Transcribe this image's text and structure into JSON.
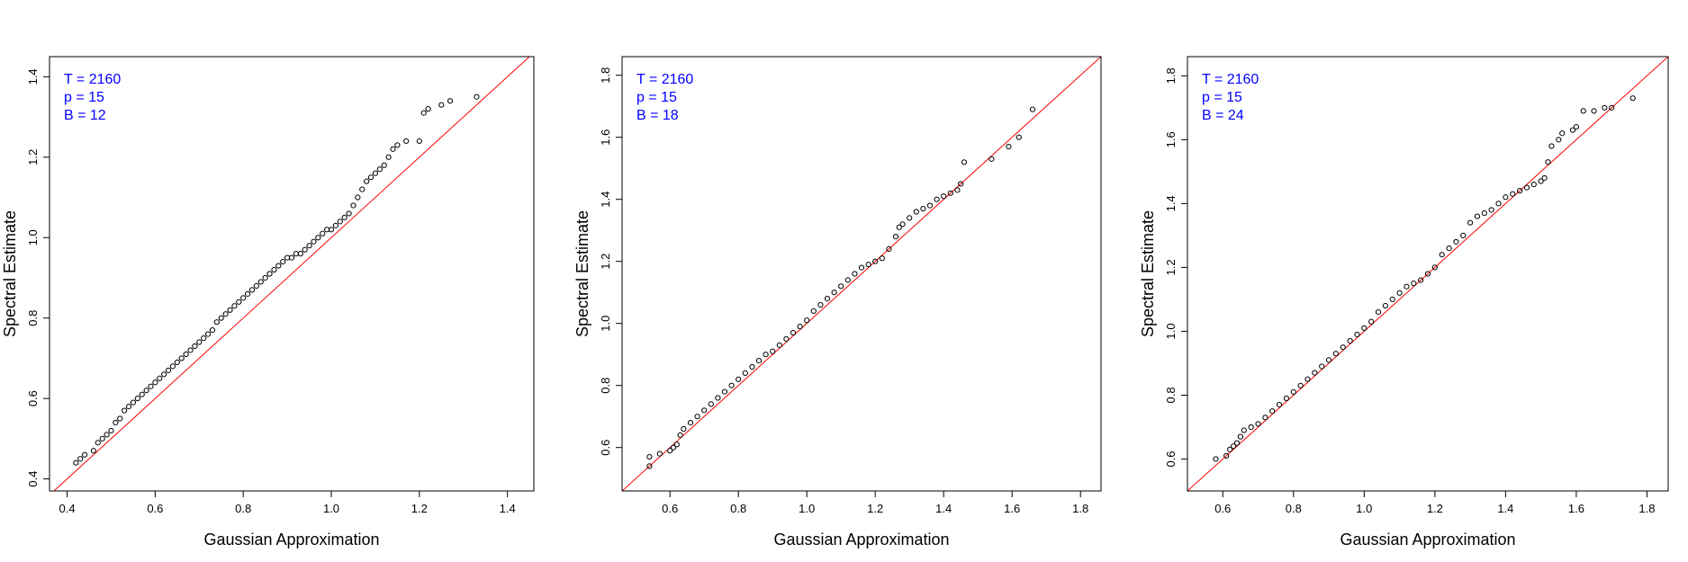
{
  "figure": {
    "background": "#ffffff",
    "point_color": "#000000",
    "line_color": "#ff0000",
    "annotation_color": "#0000ff"
  },
  "chart_data": [
    {
      "type": "scatter",
      "title": "",
      "xlabel": "Gaussian Approximation",
      "ylabel": "Spectral Estimate",
      "xlim": [
        0.36,
        1.46
      ],
      "ylim": [
        0.37,
        1.45
      ],
      "xticks": [
        "0.4",
        "0.6",
        "0.8",
        "1.0",
        "1.2",
        "1.4"
      ],
      "yticks": [
        "0.4",
        "0.6",
        "0.8",
        "1.0",
        "1.2",
        "1.4"
      ],
      "annotations": [
        "T = 2160",
        "p = 15",
        "B = 12"
      ],
      "reference_line": "y = x",
      "points": [
        [
          0.42,
          0.44
        ],
        [
          0.43,
          0.45
        ],
        [
          0.44,
          0.46
        ],
        [
          0.46,
          0.47
        ],
        [
          0.47,
          0.49
        ],
        [
          0.48,
          0.5
        ],
        [
          0.49,
          0.51
        ],
        [
          0.5,
          0.52
        ],
        [
          0.51,
          0.54
        ],
        [
          0.52,
          0.55
        ],
        [
          0.53,
          0.57
        ],
        [
          0.54,
          0.58
        ],
        [
          0.55,
          0.59
        ],
        [
          0.56,
          0.6
        ],
        [
          0.57,
          0.61
        ],
        [
          0.58,
          0.62
        ],
        [
          0.59,
          0.63
        ],
        [
          0.6,
          0.64
        ],
        [
          0.61,
          0.65
        ],
        [
          0.62,
          0.66
        ],
        [
          0.63,
          0.67
        ],
        [
          0.64,
          0.68
        ],
        [
          0.65,
          0.69
        ],
        [
          0.66,
          0.7
        ],
        [
          0.67,
          0.71
        ],
        [
          0.68,
          0.72
        ],
        [
          0.69,
          0.73
        ],
        [
          0.7,
          0.74
        ],
        [
          0.71,
          0.75
        ],
        [
          0.72,
          0.76
        ],
        [
          0.73,
          0.77
        ],
        [
          0.74,
          0.79
        ],
        [
          0.75,
          0.8
        ],
        [
          0.76,
          0.81
        ],
        [
          0.77,
          0.82
        ],
        [
          0.78,
          0.83
        ],
        [
          0.79,
          0.84
        ],
        [
          0.8,
          0.85
        ],
        [
          0.81,
          0.86
        ],
        [
          0.82,
          0.87
        ],
        [
          0.83,
          0.88
        ],
        [
          0.84,
          0.89
        ],
        [
          0.85,
          0.9
        ],
        [
          0.86,
          0.91
        ],
        [
          0.87,
          0.92
        ],
        [
          0.88,
          0.93
        ],
        [
          0.89,
          0.94
        ],
        [
          0.9,
          0.95
        ],
        [
          0.91,
          0.95
        ],
        [
          0.92,
          0.96
        ],
        [
          0.93,
          0.96
        ],
        [
          0.94,
          0.97
        ],
        [
          0.95,
          0.98
        ],
        [
          0.96,
          0.99
        ],
        [
          0.97,
          1.0
        ],
        [
          0.98,
          1.01
        ],
        [
          0.99,
          1.02
        ],
        [
          1.0,
          1.02
        ],
        [
          1.01,
          1.03
        ],
        [
          1.02,
          1.04
        ],
        [
          1.03,
          1.05
        ],
        [
          1.04,
          1.06
        ],
        [
          1.05,
          1.08
        ],
        [
          1.06,
          1.1
        ],
        [
          1.07,
          1.12
        ],
        [
          1.08,
          1.14
        ],
        [
          1.09,
          1.15
        ],
        [
          1.1,
          1.16
        ],
        [
          1.11,
          1.17
        ],
        [
          1.12,
          1.18
        ],
        [
          1.13,
          1.2
        ],
        [
          1.14,
          1.22
        ],
        [
          1.15,
          1.23
        ],
        [
          1.17,
          1.24
        ],
        [
          1.2,
          1.24
        ],
        [
          1.21,
          1.31
        ],
        [
          1.22,
          1.32
        ],
        [
          1.25,
          1.33
        ],
        [
          1.27,
          1.34
        ],
        [
          1.33,
          1.35
        ]
      ]
    },
    {
      "type": "scatter",
      "title": "",
      "xlabel": "Gaussian Approximation",
      "ylabel": "Spectral Estimate",
      "xlim": [
        0.46,
        1.86
      ],
      "ylim": [
        0.46,
        1.86
      ],
      "xticks": [
        "0.6",
        "0.8",
        "1.0",
        "1.2",
        "1.4",
        "1.6",
        "1.8"
      ],
      "yticks": [
        "0.6",
        "0.8",
        "1.0",
        "1.2",
        "1.4",
        "1.6",
        "1.8"
      ],
      "annotations": [
        "T = 2160",
        "p = 15",
        "B = 18"
      ],
      "reference_line": "y = x",
      "points": [
        [
          0.54,
          0.54
        ],
        [
          0.54,
          0.57
        ],
        [
          0.57,
          0.58
        ],
        [
          0.6,
          0.59
        ],
        [
          0.61,
          0.6
        ],
        [
          0.62,
          0.61
        ],
        [
          0.63,
          0.64
        ],
        [
          0.64,
          0.66
        ],
        [
          0.66,
          0.68
        ],
        [
          0.68,
          0.7
        ],
        [
          0.7,
          0.72
        ],
        [
          0.72,
          0.74
        ],
        [
          0.74,
          0.76
        ],
        [
          0.76,
          0.78
        ],
        [
          0.78,
          0.8
        ],
        [
          0.8,
          0.82
        ],
        [
          0.82,
          0.84
        ],
        [
          0.84,
          0.86
        ],
        [
          0.86,
          0.88
        ],
        [
          0.88,
          0.9
        ],
        [
          0.9,
          0.91
        ],
        [
          0.92,
          0.93
        ],
        [
          0.94,
          0.95
        ],
        [
          0.96,
          0.97
        ],
        [
          0.98,
          0.99
        ],
        [
          1.0,
          1.01
        ],
        [
          1.02,
          1.04
        ],
        [
          1.04,
          1.06
        ],
        [
          1.06,
          1.08
        ],
        [
          1.08,
          1.1
        ],
        [
          1.1,
          1.12
        ],
        [
          1.12,
          1.14
        ],
        [
          1.14,
          1.16
        ],
        [
          1.16,
          1.18
        ],
        [
          1.18,
          1.19
        ],
        [
          1.2,
          1.2
        ],
        [
          1.22,
          1.21
        ],
        [
          1.24,
          1.24
        ],
        [
          1.26,
          1.28
        ],
        [
          1.27,
          1.31
        ],
        [
          1.28,
          1.32
        ],
        [
          1.3,
          1.34
        ],
        [
          1.32,
          1.36
        ],
        [
          1.34,
          1.37
        ],
        [
          1.36,
          1.38
        ],
        [
          1.38,
          1.4
        ],
        [
          1.4,
          1.41
        ],
        [
          1.42,
          1.42
        ],
        [
          1.44,
          1.43
        ],
        [
          1.45,
          1.45
        ],
        [
          1.46,
          1.52
        ],
        [
          1.54,
          1.53
        ],
        [
          1.59,
          1.57
        ],
        [
          1.62,
          1.6
        ],
        [
          1.66,
          1.69
        ]
      ]
    },
    {
      "type": "scatter",
      "title": "",
      "xlabel": "Gaussian Approximation",
      "ylabel": "Spectral Estimate",
      "xlim": [
        0.5,
        1.86
      ],
      "ylim": [
        0.5,
        1.86
      ],
      "xticks": [
        "0.6",
        "0.8",
        "1.0",
        "1.2",
        "1.4",
        "1.6",
        "1.8"
      ],
      "yticks": [
        "0.6",
        "0.8",
        "1.0",
        "1.2",
        "1.4",
        "1.6",
        "1.8"
      ],
      "annotations": [
        "T = 2160",
        "p = 15",
        "B = 24"
      ],
      "reference_line": "y = x",
      "points": [
        [
          0.58,
          0.6
        ],
        [
          0.61,
          0.61
        ],
        [
          0.62,
          0.63
        ],
        [
          0.63,
          0.64
        ],
        [
          0.64,
          0.65
        ],
        [
          0.65,
          0.67
        ],
        [
          0.66,
          0.69
        ],
        [
          0.68,
          0.7
        ],
        [
          0.7,
          0.71
        ],
        [
          0.72,
          0.73
        ],
        [
          0.74,
          0.75
        ],
        [
          0.76,
          0.77
        ],
        [
          0.78,
          0.79
        ],
        [
          0.8,
          0.81
        ],
        [
          0.82,
          0.83
        ],
        [
          0.84,
          0.85
        ],
        [
          0.86,
          0.87
        ],
        [
          0.88,
          0.89
        ],
        [
          0.9,
          0.91
        ],
        [
          0.92,
          0.93
        ],
        [
          0.94,
          0.95
        ],
        [
          0.96,
          0.97
        ],
        [
          0.98,
          0.99
        ],
        [
          1.0,
          1.01
        ],
        [
          1.02,
          1.03
        ],
        [
          1.04,
          1.06
        ],
        [
          1.06,
          1.08
        ],
        [
          1.08,
          1.1
        ],
        [
          1.1,
          1.12
        ],
        [
          1.12,
          1.14
        ],
        [
          1.14,
          1.15
        ],
        [
          1.16,
          1.16
        ],
        [
          1.18,
          1.18
        ],
        [
          1.2,
          1.2
        ],
        [
          1.22,
          1.24
        ],
        [
          1.24,
          1.26
        ],
        [
          1.26,
          1.28
        ],
        [
          1.28,
          1.3
        ],
        [
          1.3,
          1.34
        ],
        [
          1.32,
          1.36
        ],
        [
          1.34,
          1.37
        ],
        [
          1.36,
          1.38
        ],
        [
          1.38,
          1.4
        ],
        [
          1.4,
          1.42
        ],
        [
          1.42,
          1.43
        ],
        [
          1.44,
          1.44
        ],
        [
          1.46,
          1.45
        ],
        [
          1.48,
          1.46
        ],
        [
          1.5,
          1.47
        ],
        [
          1.51,
          1.48
        ],
        [
          1.52,
          1.53
        ],
        [
          1.53,
          1.58
        ],
        [
          1.55,
          1.6
        ],
        [
          1.56,
          1.62
        ],
        [
          1.59,
          1.63
        ],
        [
          1.6,
          1.64
        ],
        [
          1.62,
          1.69
        ],
        [
          1.65,
          1.69
        ],
        [
          1.68,
          1.7
        ],
        [
          1.7,
          1.7
        ],
        [
          1.76,
          1.73
        ]
      ]
    }
  ]
}
